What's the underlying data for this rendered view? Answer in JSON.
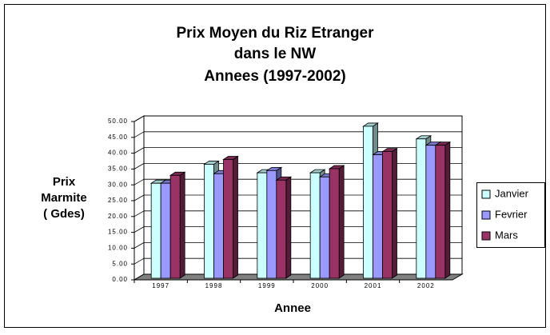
{
  "chart_data": {
    "type": "bar3d",
    "title": [
      "Prix Moyen du Riz Etranger",
      "dans le NW",
      "Annees (1997-2002)"
    ],
    "x_label": "Annee",
    "y_label": [
      "Prix",
      "Marmite",
      "( Gdes)"
    ],
    "categories": [
      "1997",
      "1998",
      "1999",
      "2000",
      "2001",
      "2002"
    ],
    "series": [
      {
        "name": "Janvier",
        "color": "#ccffff",
        "values": [
          30,
          36,
          33.3,
          33.3,
          48,
          44
        ]
      },
      {
        "name": "Fevrier",
        "color": "#9999ff",
        "values": [
          30,
          33,
          34,
          32,
          39,
          42
        ]
      },
      {
        "name": "Mars",
        "color": "#993366",
        "values": [
          32.5,
          37.5,
          31,
          34.6,
          40,
          42
        ]
      }
    ],
    "ylim": [
      0,
      50
    ],
    "yticks": [
      {
        "value": 0,
        "label": "0.00"
      },
      {
        "value": 5,
        "label": "5.00"
      },
      {
        "value": 10,
        "label": "10.00"
      },
      {
        "value": 15,
        "label": "15.00"
      },
      {
        "value": 20,
        "label": "20.00"
      },
      {
        "value": 25,
        "label": "25.00"
      },
      {
        "value": 30,
        "label": "30.00"
      },
      {
        "value": 35,
        "label": "35.00"
      },
      {
        "value": 40,
        "label": "40.00"
      },
      {
        "value": 45,
        "label": "45.00"
      },
      {
        "value": 50,
        "label": "50.00"
      }
    ],
    "grid": true,
    "legend": "right"
  }
}
